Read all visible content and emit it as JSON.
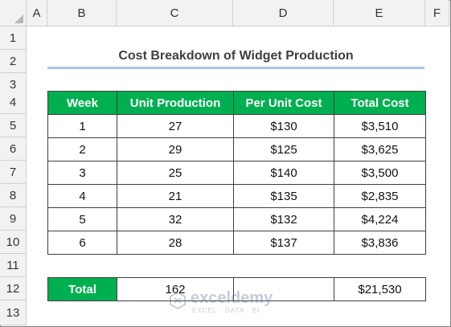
{
  "columns": [
    "A",
    "B",
    "C",
    "D",
    "E",
    "F"
  ],
  "rows": [
    "1",
    "2",
    "3",
    "4",
    "5",
    "6",
    "7",
    "8",
    "9",
    "10",
    "11",
    "12",
    "13"
  ],
  "title": "Cost Breakdown of Widget Production",
  "headers": [
    "Week",
    "Unit Production",
    "Per Unit Cost",
    "Total Cost"
  ],
  "table": [
    {
      "week": "1",
      "units": "27",
      "per_unit": "$130",
      "total": "$3,510"
    },
    {
      "week": "2",
      "units": "29",
      "per_unit": "$125",
      "total": "$3,625"
    },
    {
      "week": "3",
      "units": "25",
      "per_unit": "$140",
      "total": "$3,500"
    },
    {
      "week": "4",
      "units": "21",
      "per_unit": "$135",
      "total": "$2,835"
    },
    {
      "week": "5",
      "units": "32",
      "per_unit": "$132",
      "total": "$4,224"
    },
    {
      "week": "6",
      "units": "28",
      "per_unit": "$137",
      "total": "$3,836"
    }
  ],
  "total": {
    "label": "Total",
    "units": "162",
    "per_unit": "",
    "total": "$21,530"
  },
  "watermark": {
    "name": "exceldemy",
    "tagline": "EXCEL · DATA · BI"
  },
  "colors": {
    "header_green": "#00b050",
    "title_underline": "#a9c6e3"
  }
}
